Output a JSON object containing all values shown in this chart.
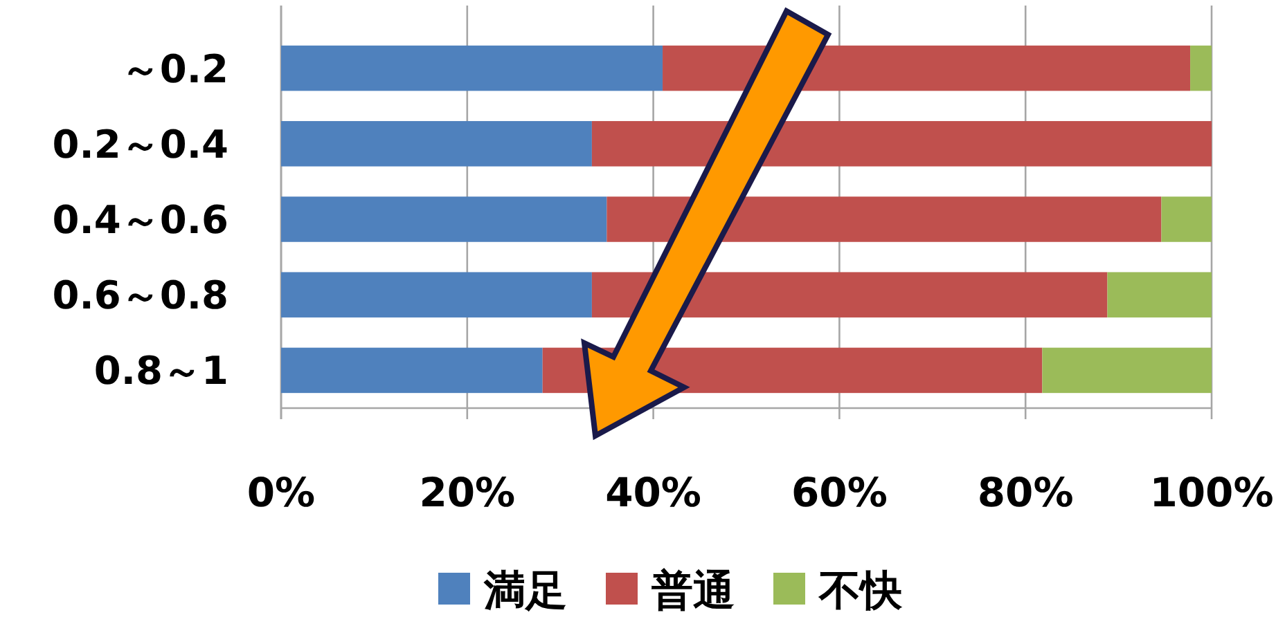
{
  "chart_data": {
    "type": "bar",
    "orientation": "horizontal",
    "stacked": true,
    "categories": [
      "～0.2",
      "0.2～0.4",
      "0.4～0.6",
      "0.6～0.8",
      "0.8～1"
    ],
    "series": [
      {
        "name": "満足",
        "color": "#4f81bd",
        "values": [
          41.0,
          33.4,
          35.0,
          33.4,
          28.1
        ]
      },
      {
        "name": "普通",
        "color": "#c0504d",
        "values": [
          56.7,
          66.6,
          59.6,
          55.4,
          53.7
        ]
      },
      {
        "name": "不快",
        "color": "#9bbb59",
        "values": [
          2.3,
          0,
          5.4,
          11.2,
          18.2
        ]
      }
    ],
    "xlim": [
      0,
      100
    ],
    "xticks": [
      {
        "value": 0,
        "label": "0%"
      },
      {
        "value": 20,
        "label": "20%"
      },
      {
        "value": 40,
        "label": "40%"
      },
      {
        "value": 60,
        "label": "60%"
      },
      {
        "value": 80,
        "label": "80%"
      },
      {
        "value": 100,
        "label": "100%"
      }
    ],
    "grid": "x",
    "legend": "bottom"
  }
}
